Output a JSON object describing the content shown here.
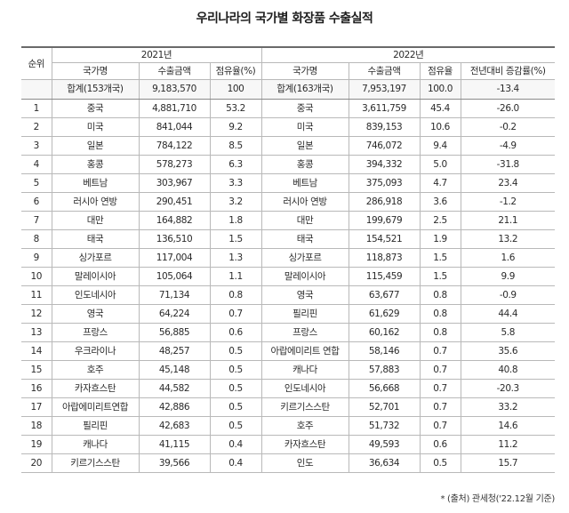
{
  "title": "우리나라의 국가별 화장품 수출실적",
  "headers": {
    "rank": "순위",
    "year_2021": "2021년",
    "year_2022": "2022년",
    "country": "국가명",
    "export_amount": "수출금액",
    "share": "점유율(%)",
    "share_2022": "점유율",
    "change": "전년대비 증감률(%)"
  },
  "totals": {
    "label_2021": "합계(153개국)",
    "amount_2021": "9,183,570",
    "share_2021": "100",
    "label_2022": "합계(163개국)",
    "amount_2022": "7,953,197",
    "share_2022": "100.0",
    "change": "-13.4"
  },
  "rows": [
    {
      "rank": "1",
      "c2021": "중국",
      "a2021": "4,881,710",
      "s2021": "53.2",
      "c2022": "중국",
      "a2022": "3,611,759",
      "s2022": "45.4",
      "chg": "-26.0"
    },
    {
      "rank": "2",
      "c2021": "미국",
      "a2021": "841,044",
      "s2021": "9.2",
      "c2022": "미국",
      "a2022": "839,153",
      "s2022": "10.6",
      "chg": "-0.2"
    },
    {
      "rank": "3",
      "c2021": "일본",
      "a2021": "784,122",
      "s2021": "8.5",
      "c2022": "일본",
      "a2022": "746,072",
      "s2022": "9.4",
      "chg": "-4.9"
    },
    {
      "rank": "4",
      "c2021": "홍콩",
      "a2021": "578,273",
      "s2021": "6.3",
      "c2022": "홍콩",
      "a2022": "394,332",
      "s2022": "5.0",
      "chg": "-31.8"
    },
    {
      "rank": "5",
      "c2021": "베트남",
      "a2021": "303,967",
      "s2021": "3.3",
      "c2022": "베트남",
      "a2022": "375,093",
      "s2022": "4.7",
      "chg": "23.4"
    },
    {
      "rank": "6",
      "c2021": "러시아 연방",
      "a2021": "290,451",
      "s2021": "3.2",
      "c2022": "러시아 연방",
      "a2022": "286,918",
      "s2022": "3.6",
      "chg": "-1.2"
    },
    {
      "rank": "7",
      "c2021": "대만",
      "a2021": "164,882",
      "s2021": "1.8",
      "c2022": "대만",
      "a2022": "199,679",
      "s2022": "2.5",
      "chg": "21.1"
    },
    {
      "rank": "8",
      "c2021": "태국",
      "a2021": "136,510",
      "s2021": "1.5",
      "c2022": "태국",
      "a2022": "154,521",
      "s2022": "1.9",
      "chg": "13.2"
    },
    {
      "rank": "9",
      "c2021": "싱가포르",
      "a2021": "117,004",
      "s2021": "1.3",
      "c2022": "싱가포르",
      "a2022": "118,873",
      "s2022": "1.5",
      "chg": "1.6"
    },
    {
      "rank": "10",
      "c2021": "말레이시아",
      "a2021": "105,064",
      "s2021": "1.1",
      "c2022": "말레이시아",
      "a2022": "115,459",
      "s2022": "1.5",
      "chg": "9.9"
    },
    {
      "rank": "11",
      "c2021": "인도네시아",
      "a2021": "71,134",
      "s2021": "0.8",
      "c2022": "영국",
      "a2022": "63,677",
      "s2022": "0.8",
      "chg": "-0.9"
    },
    {
      "rank": "12",
      "c2021": "영국",
      "a2021": "64,224",
      "s2021": "0.7",
      "c2022": "필리핀",
      "a2022": "61,629",
      "s2022": "0.8",
      "chg": "44.4"
    },
    {
      "rank": "13",
      "c2021": "프랑스",
      "a2021": "56,885",
      "s2021": "0.6",
      "c2022": "프랑스",
      "a2022": "60,162",
      "s2022": "0.8",
      "chg": "5.8"
    },
    {
      "rank": "14",
      "c2021": "우크라이나",
      "a2021": "48,257",
      "s2021": "0.5",
      "c2022": "아랍에미리트 연합",
      "a2022": "58,146",
      "s2022": "0.7",
      "chg": "35.6"
    },
    {
      "rank": "15",
      "c2021": "호주",
      "a2021": "45,148",
      "s2021": "0.5",
      "c2022": "캐나다",
      "a2022": "57,883",
      "s2022": "0.7",
      "chg": "40.8"
    },
    {
      "rank": "16",
      "c2021": "카자흐스탄",
      "a2021": "44,582",
      "s2021": "0.5",
      "c2022": "인도네시아",
      "a2022": "56,668",
      "s2022": "0.7",
      "chg": "-20.3"
    },
    {
      "rank": "17",
      "c2021": "아랍에미리트연합",
      "a2021": "42,886",
      "s2021": "0.5",
      "c2022": "키르기스스탄",
      "a2022": "52,701",
      "s2022": "0.7",
      "chg": "33.2"
    },
    {
      "rank": "18",
      "c2021": "필리핀",
      "a2021": "42,683",
      "s2021": "0.5",
      "c2022": "호주",
      "a2022": "51,732",
      "s2022": "0.7",
      "chg": "14.6"
    },
    {
      "rank": "19",
      "c2021": "캐나다",
      "a2021": "41,115",
      "s2021": "0.4",
      "c2022": "카자흐스탄",
      "a2022": "49,593",
      "s2022": "0.6",
      "chg": "11.2"
    },
    {
      "rank": "20",
      "c2021": "키르기스스탄",
      "a2021": "39,566",
      "s2021": "0.4",
      "c2022": "인도",
      "a2022": "36,634",
      "s2022": "0.5",
      "chg": "15.7"
    }
  ],
  "source": "* (출처) 관세청('22.12월 기준)"
}
